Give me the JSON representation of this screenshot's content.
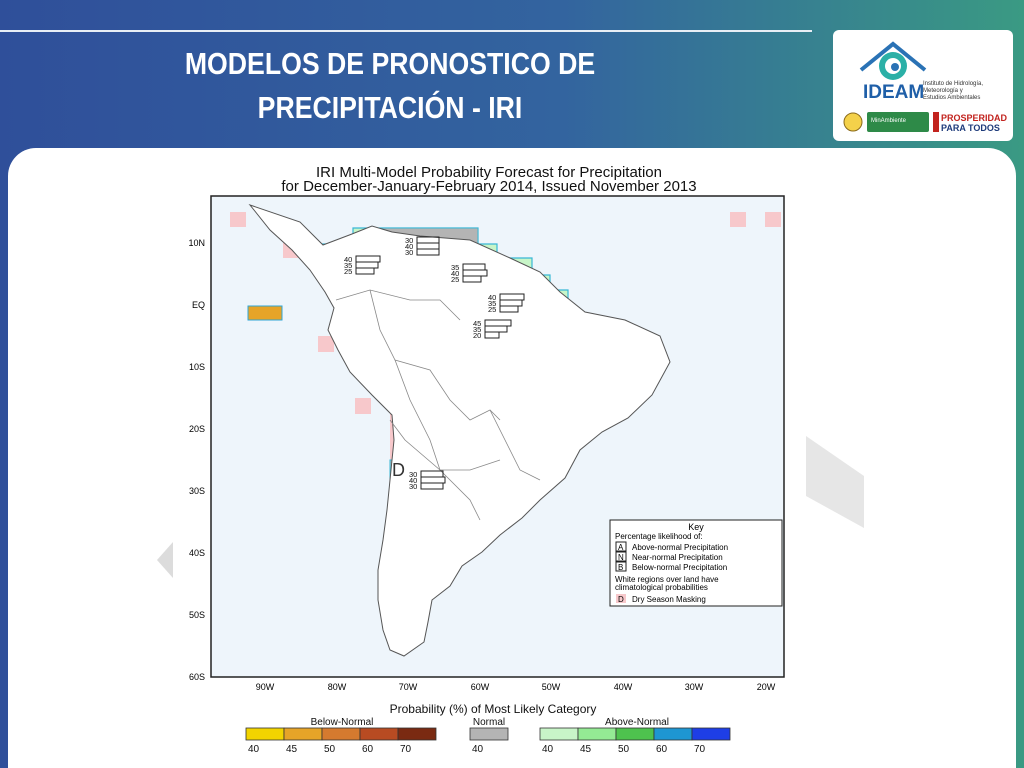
{
  "slide": {
    "title_line1": "MODELOS DE PRONOSTICO DE",
    "title_line2": "PRECIPITACIÓN - IRI"
  },
  "logo": {
    "name": "IDEAM",
    "subtitle_lines": [
      "Instituto de Hidrología,",
      "Meteorología y",
      "Estudios Ambientales"
    ],
    "ministry": "MinAmbiente",
    "slogan_line1": "PROSPERIDAD",
    "slogan_line2": "PARA TODOS"
  },
  "map": {
    "title_line1": "IRI Multi-Model Probability Forecast for Precipitation",
    "title_line2": "for December-January-February 2014, Issued November 2013",
    "lat_labels": [
      "10N",
      "EQ",
      "10S",
      "20S",
      "30S",
      "40S",
      "50S",
      "60S"
    ],
    "lon_labels": [
      "90W",
      "80W",
      "70W",
      "60W",
      "50W",
      "40W",
      "30W",
      "20W"
    ],
    "forecast_boxes": [
      {
        "values": [
          "30",
          "40",
          "30"
        ]
      },
      {
        "values": [
          "40",
          "35",
          "25"
        ]
      },
      {
        "values": [
          "35",
          "40",
          "25"
        ]
      },
      {
        "values": [
          "40",
          "35",
          "25"
        ]
      },
      {
        "values": [
          "45",
          "35",
          "20"
        ]
      },
      {
        "values": [
          "30",
          "40",
          "30"
        ]
      }
    ],
    "dry_mark": "D"
  },
  "key": {
    "title": "Key",
    "subtitle_line1": "Percentage likelihood of:",
    "rows": [
      {
        "letter": "A",
        "label": "Above-normal Precipitation"
      },
      {
        "letter": "N",
        "label": "Near-normal Precipitation"
      },
      {
        "letter": "B",
        "label": "Below-normal Precipitation"
      }
    ],
    "note_line1": "White regions over land have",
    "note_line2": "climatological probabilities",
    "dry_letter": "D",
    "dry_label": "Dry Season Masking"
  },
  "colorbar": {
    "title": "Probability (%) of Most Likely Category",
    "below_label": "Below-Normal",
    "normal_label": "Normal",
    "above_label": "Above-Normal",
    "below": [
      {
        "value": "40",
        "color": "#f2d400"
      },
      {
        "value": "45",
        "color": "#e6a428"
      },
      {
        "value": "50",
        "color": "#d57a2f"
      },
      {
        "value": "60",
        "color": "#b84b22"
      },
      {
        "value": "70",
        "color": "#7a2a12"
      }
    ],
    "normal": [
      {
        "value": "40",
        "color": "#b4b4b4"
      }
    ],
    "above": [
      {
        "value": "40",
        "color": "#c8f5c8"
      },
      {
        "value": "45",
        "color": "#94ea94"
      },
      {
        "value": "50",
        "color": "#4ec24e"
      },
      {
        "value": "60",
        "color": "#1e96d2"
      },
      {
        "value": "70",
        "color": "#1e3ee6"
      }
    ]
  }
}
